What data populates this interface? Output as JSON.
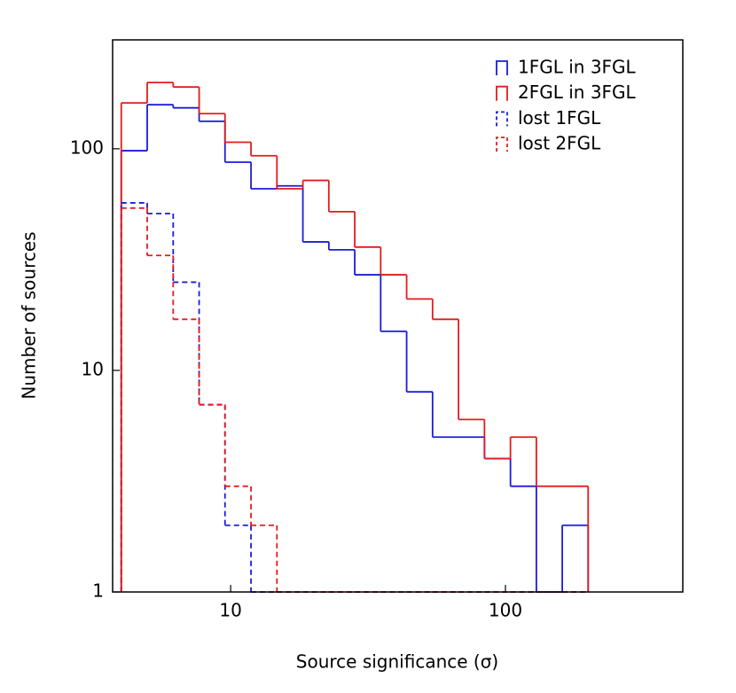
{
  "chart_data": {
    "type": "histogram",
    "xlabel": "Source significance (σ)",
    "ylabel": "Number of sources",
    "xscale": "log",
    "yscale": "log",
    "xlim": [
      3.72,
      442
    ],
    "ylim": [
      1,
      310
    ],
    "xticks": [
      10,
      100
    ],
    "yticks": [
      1,
      10,
      100
    ],
    "legend": "upper right",
    "bins": [
      4.0,
      4.97,
      6.18,
      7.68,
      9.54,
      11.86,
      14.74,
      18.32,
      22.77,
      28.29,
      35.16,
      43.7,
      54.31,
      67.5,
      83.89,
      104.3,
      129.6,
      161.0,
      200.0
    ],
    "series": [
      {
        "name": "1FGL in 3FGL",
        "color": "#1c1cd8",
        "linestyle": "solid",
        "values": [
          98,
          158,
          153,
          133,
          87,
          66,
          68,
          38,
          35,
          27,
          15,
          8,
          5,
          5,
          4,
          3,
          0,
          2
        ]
      },
      {
        "name": "2FGL in 3FGL",
        "color": "#e01c1c",
        "linestyle": "solid",
        "values": [
          161,
          199,
          190,
          144,
          107,
          93,
          66,
          72,
          52,
          36,
          27,
          21,
          17,
          6,
          4,
          5,
          3,
          3
        ]
      },
      {
        "name": "lost 1FGL",
        "color": "#1c1cd8",
        "linestyle": "dashed",
        "values": [
          57,
          51,
          25,
          7,
          2,
          0,
          0,
          0,
          0,
          0,
          0,
          0,
          0,
          0,
          0,
          0,
          0,
          0
        ]
      },
      {
        "name": "lost 2FGL",
        "color": "#e01c1c",
        "linestyle": "dashed",
        "values": [
          54,
          33,
          17,
          7,
          3,
          2,
          0,
          0,
          0,
          0,
          0,
          0,
          0,
          0,
          0,
          0,
          0,
          0
        ]
      }
    ]
  }
}
